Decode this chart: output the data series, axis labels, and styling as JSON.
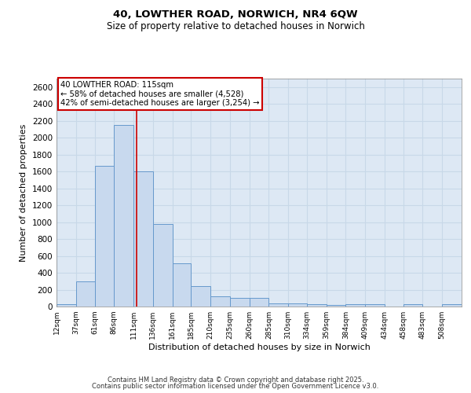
{
  "title1": "40, LOWTHER ROAD, NORWICH, NR4 6QW",
  "title2": "Size of property relative to detached houses in Norwich",
  "xlabel": "Distribution of detached houses by size in Norwich",
  "ylabel": "Number of detached properties",
  "bin_edges": [
    12,
    37,
    61,
    86,
    111,
    136,
    161,
    185,
    210,
    235,
    260,
    285,
    310,
    334,
    359,
    384,
    409,
    434,
    458,
    483,
    508,
    533
  ],
  "bar_heights": [
    25,
    300,
    1670,
    2150,
    1600,
    975,
    510,
    245,
    120,
    100,
    100,
    40,
    35,
    25,
    20,
    25,
    25,
    0,
    25,
    0,
    25
  ],
  "bar_color": "#c8d9ee",
  "bar_edge_color": "#6699cc",
  "property_size": 115,
  "red_line_color": "#cc0000",
  "annotation_text": "40 LOWTHER ROAD: 115sqm\n← 58% of detached houses are smaller (4,528)\n42% of semi-detached houses are larger (3,254) →",
  "annotation_box_color": "#cc0000",
  "ylim": [
    0,
    2700
  ],
  "yticks": [
    0,
    200,
    400,
    600,
    800,
    1000,
    1200,
    1400,
    1600,
    1800,
    2000,
    2200,
    2400,
    2600
  ],
  "grid_color": "#c8d8e8",
  "bg_color": "#dde8f4",
  "footer1": "Contains HM Land Registry data © Crown copyright and database right 2025.",
  "footer2": "Contains public sector information licensed under the Open Government Licence v3.0.",
  "tick_labels": [
    "12sqm",
    "37sqm",
    "61sqm",
    "86sqm",
    "111sqm",
    "136sqm",
    "161sqm",
    "185sqm",
    "210sqm",
    "235sqm",
    "260sqm",
    "285sqm",
    "310sqm",
    "334sqm",
    "359sqm",
    "384sqm",
    "409sqm",
    "434sqm",
    "458sqm",
    "483sqm",
    "508sqm"
  ]
}
